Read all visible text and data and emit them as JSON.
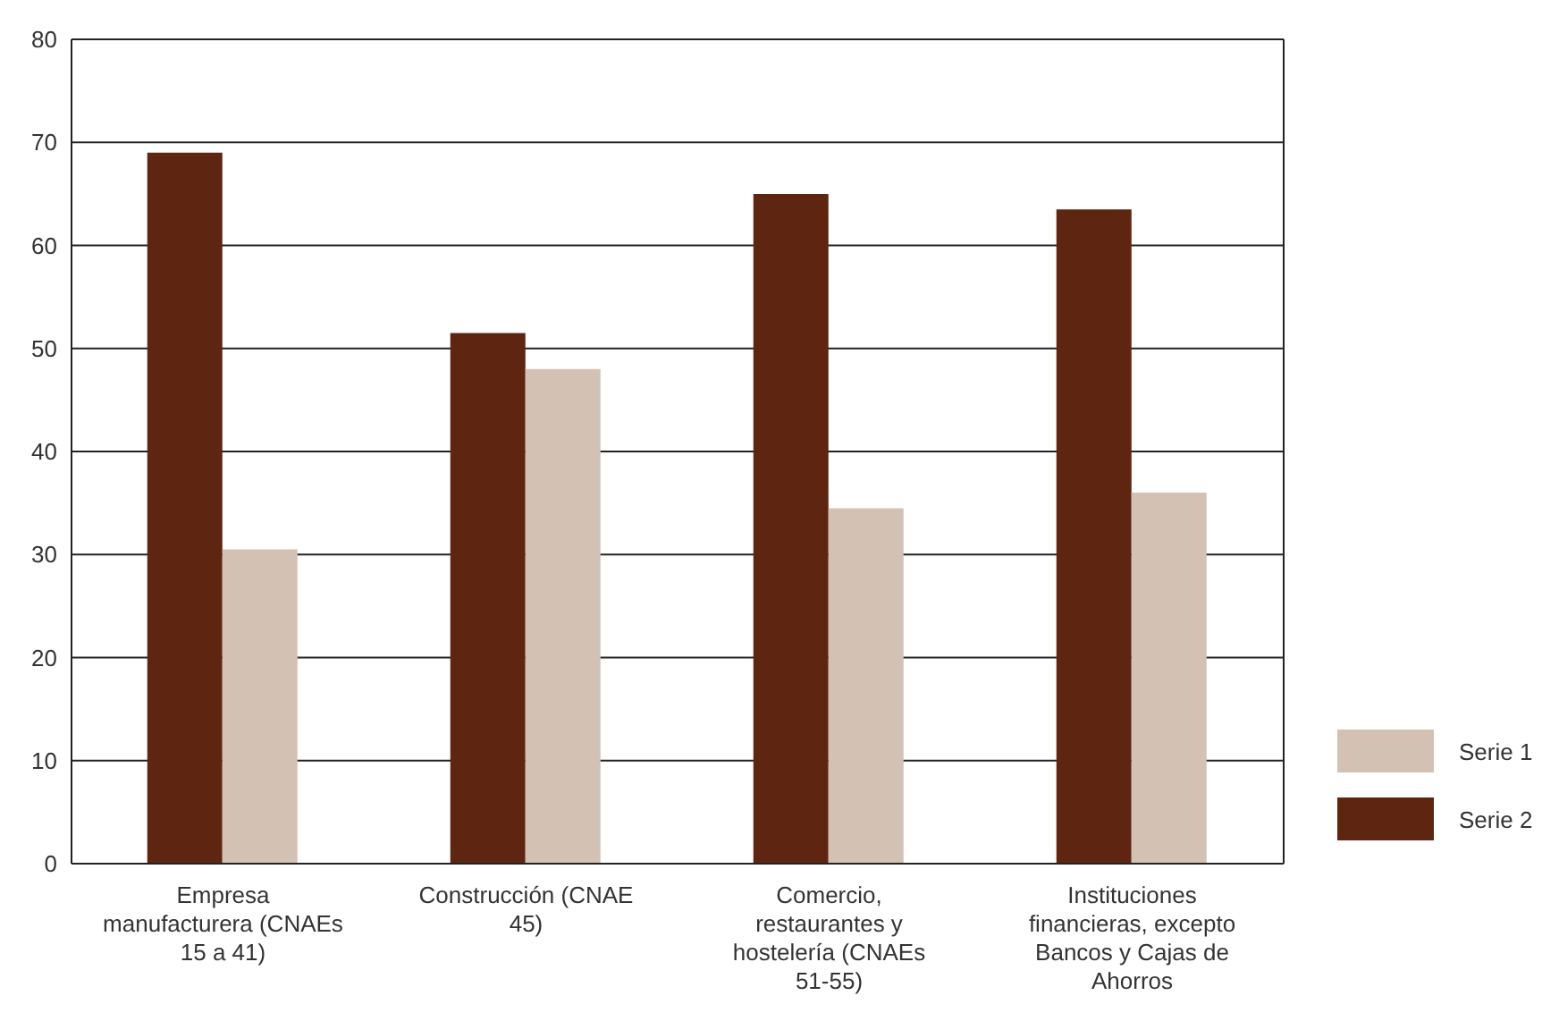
{
  "chart_data": {
    "type": "bar",
    "categories": [
      "Empresa manufacturera (CNAEs 15 a 41)",
      "Construcción (CNAE 45)",
      "Comercio, restaurantes y hostelería (CNAEs 51-55)",
      "Instituciones financieras, excepto Bancos y Cajas de Ahorros"
    ],
    "series": [
      {
        "name": "Serie 2",
        "color": "#5e2510",
        "values": [
          69,
          51.5,
          65,
          63.5
        ]
      },
      {
        "name": "Serie 1",
        "color": "#d3c2b4",
        "values": [
          30.5,
          48,
          34.5,
          36
        ]
      }
    ],
    "ylim": [
      0,
      80
    ],
    "yticks": [
      0,
      10,
      20,
      30,
      40,
      50,
      60,
      70,
      80
    ],
    "grid": "y",
    "legend": "right"
  }
}
